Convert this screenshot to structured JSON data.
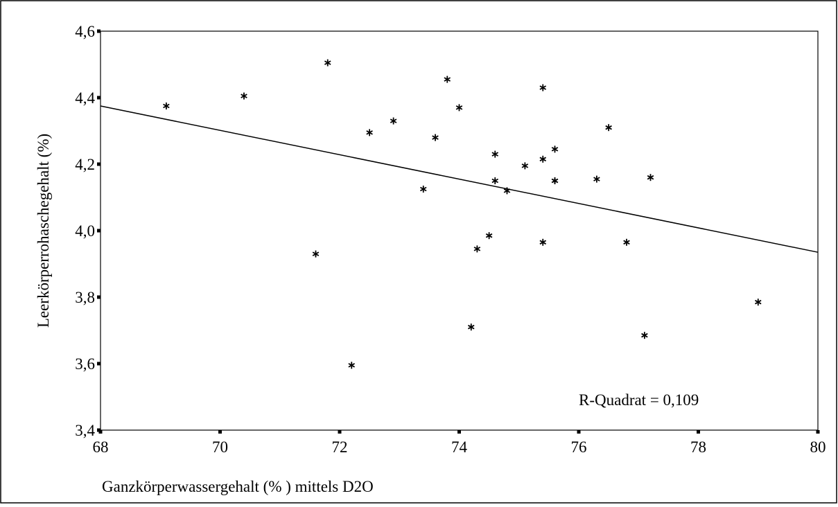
{
  "chart_data": {
    "type": "scatter",
    "title": "",
    "xlabel": "Ganzkörperwassergehalt (% ) mittels D2O",
    "ylabel": "Leerkörperrohaschegehalt (%)",
    "xlim": [
      68,
      80
    ],
    "ylim": [
      3.4,
      4.6
    ],
    "xticks": [
      "68",
      "70",
      "72",
      "74",
      "76",
      "78",
      "80"
    ],
    "yticks": [
      "3,4",
      "3,6",
      "3,8",
      "4,0",
      "4,2",
      "4,4",
      "4,6"
    ],
    "grid": false,
    "marker": "*",
    "annotation": "R-Quadrat = 0,109",
    "regression_line": {
      "x": [
        68,
        80
      ],
      "y": [
        4.375,
        3.935
      ]
    },
    "series": [
      {
        "x": [
          69.1,
          70.4,
          71.8,
          71.6,
          72.2,
          72.5,
          72.9,
          73.4,
          73.6,
          73.8,
          74.0,
          74.2,
          74.3,
          74.5,
          74.6,
          74.6,
          74.8,
          75.1,
          75.4,
          75.4,
          75.4,
          75.6,
          75.6,
          75.6,
          76.3,
          76.5,
          76.8,
          77.1,
          77.2,
          79.0
        ],
        "y": [
          4.375,
          4.405,
          4.505,
          3.93,
          3.595,
          4.295,
          4.33,
          4.125,
          4.28,
          4.455,
          4.37,
          3.71,
          3.945,
          3.985,
          4.23,
          4.15,
          4.12,
          4.195,
          4.43,
          4.215,
          3.965,
          4.245,
          4.15,
          4.15,
          4.155,
          4.31,
          3.965,
          3.685,
          4.16,
          3.785
        ]
      }
    ]
  }
}
